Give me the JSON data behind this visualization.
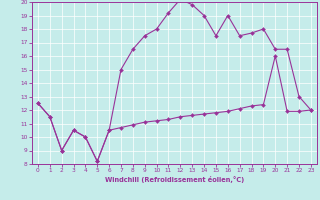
{
  "xlabel": "Windchill (Refroidissement éolien,°C)",
  "xlim": [
    -0.5,
    23.5
  ],
  "ylim": [
    8,
    20
  ],
  "yticks": [
    8,
    9,
    10,
    11,
    12,
    13,
    14,
    15,
    16,
    17,
    18,
    19,
    20
  ],
  "xticks": [
    0,
    1,
    2,
    3,
    4,
    5,
    6,
    7,
    8,
    9,
    10,
    11,
    12,
    13,
    14,
    15,
    16,
    17,
    18,
    19,
    20,
    21,
    22,
    23
  ],
  "background_color": "#c5ecea",
  "line_color": "#993399",
  "line1_x": [
    0,
    1,
    2,
    3,
    4,
    5,
    6,
    7,
    8,
    9,
    10,
    11,
    12,
    13,
    14,
    15,
    16,
    17,
    18,
    19,
    20,
    21,
    22,
    23
  ],
  "line1_y": [
    12.5,
    11.5,
    9.0,
    10.5,
    10.0,
    8.2,
    10.5,
    15.0,
    16.5,
    17.5,
    18.0,
    19.2,
    20.2,
    19.8,
    19.0,
    17.5,
    19.0,
    17.5,
    17.7,
    18.0,
    16.5,
    16.5,
    13.0,
    12.0
  ],
  "line2_x": [
    0,
    1,
    2,
    3,
    4,
    5,
    6,
    7,
    8,
    9,
    10,
    11,
    12,
    13,
    14,
    15,
    16,
    17,
    18,
    19,
    20,
    21,
    22,
    23
  ],
  "line2_y": [
    12.5,
    11.5,
    9.0,
    10.5,
    10.0,
    8.2,
    10.5,
    10.7,
    10.9,
    11.1,
    11.2,
    11.3,
    11.5,
    11.6,
    11.7,
    11.8,
    11.9,
    12.1,
    12.3,
    12.4,
    16.0,
    11.9,
    11.9,
    12.0
  ]
}
